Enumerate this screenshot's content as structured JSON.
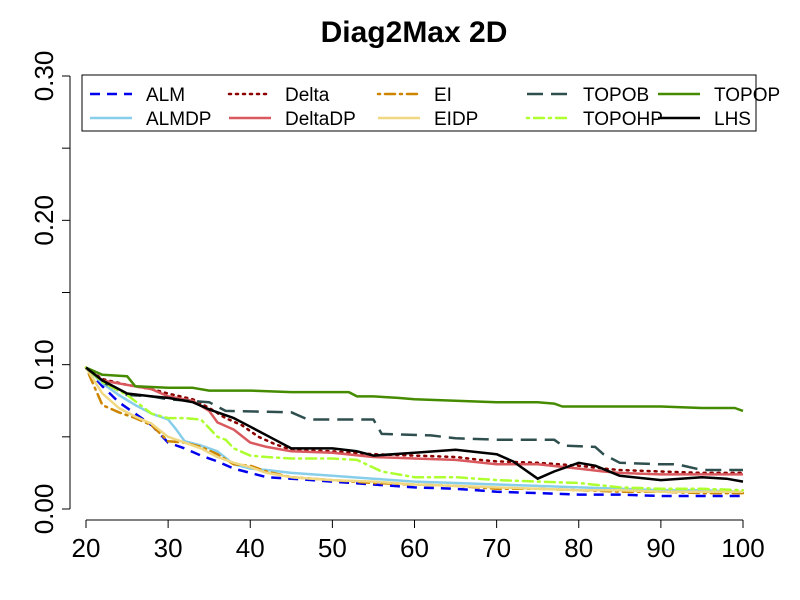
{
  "chart_data": {
    "type": "line",
    "title": "Diag2Max 2D",
    "xlabel": "",
    "ylabel": "",
    "xlim": [
      20,
      100
    ],
    "ylim": [
      0,
      0.3
    ],
    "x_ticks": [
      "20",
      "30",
      "40",
      "50",
      "60",
      "70",
      "80",
      "90",
      "100"
    ],
    "y_ticks": [
      "0.00",
      "0.10",
      "0.20",
      "0.30"
    ],
    "legend_position": "top",
    "grid": false,
    "series": [
      {
        "name": "ALM",
        "color": "#0000ee",
        "dash": "dashed",
        "points": [
          [
            20,
            0.098
          ],
          [
            22,
            0.085
          ],
          [
            24,
            0.074
          ],
          [
            26,
            0.066
          ],
          [
            28,
            0.058
          ],
          [
            30,
            0.046
          ],
          [
            32,
            0.042
          ],
          [
            34,
            0.037
          ],
          [
            36,
            0.033
          ],
          [
            38,
            0.028
          ],
          [
            40,
            0.025
          ],
          [
            42,
            0.022
          ],
          [
            45,
            0.021
          ],
          [
            50,
            0.019
          ],
          [
            55,
            0.017
          ],
          [
            60,
            0.015
          ],
          [
            65,
            0.014
          ],
          [
            70,
            0.012
          ],
          [
            75,
            0.011
          ],
          [
            80,
            0.01
          ],
          [
            85,
            0.01
          ],
          [
            90,
            0.009
          ],
          [
            95,
            0.009
          ],
          [
            100,
            0.009
          ]
        ]
      },
      {
        "name": "ALMDP",
        "color": "#87ceeb",
        "dash": "solid",
        "points": [
          [
            20,
            0.098
          ],
          [
            22,
            0.087
          ],
          [
            24,
            0.079
          ],
          [
            26,
            0.072
          ],
          [
            28,
            0.066
          ],
          [
            30,
            0.062
          ],
          [
            31,
            0.055
          ],
          [
            32,
            0.047
          ],
          [
            34,
            0.044
          ],
          [
            36,
            0.04
          ],
          [
            38,
            0.031
          ],
          [
            40,
            0.028
          ],
          [
            42,
            0.027
          ],
          [
            45,
            0.025
          ],
          [
            50,
            0.023
          ],
          [
            55,
            0.021
          ],
          [
            60,
            0.019
          ],
          [
            65,
            0.018
          ],
          [
            70,
            0.017
          ],
          [
            75,
            0.016
          ],
          [
            80,
            0.015
          ],
          [
            85,
            0.014
          ],
          [
            90,
            0.013
          ],
          [
            95,
            0.013
          ],
          [
            100,
            0.012
          ]
        ]
      },
      {
        "name": "Delta",
        "color": "#8b0000",
        "dash": "dotted",
        "points": [
          [
            20,
            0.098
          ],
          [
            22,
            0.09
          ],
          [
            25,
            0.086
          ],
          [
            28,
            0.083
          ],
          [
            30,
            0.08
          ],
          [
            33,
            0.076
          ],
          [
            35,
            0.07
          ],
          [
            37,
            0.063
          ],
          [
            39,
            0.058
          ],
          [
            41,
            0.05
          ],
          [
            43,
            0.045
          ],
          [
            45,
            0.041
          ],
          [
            50,
            0.04
          ],
          [
            55,
            0.038
          ],
          [
            60,
            0.037
          ],
          [
            65,
            0.036
          ],
          [
            68,
            0.034
          ],
          [
            70,
            0.033
          ],
          [
            75,
            0.032
          ],
          [
            80,
            0.03
          ],
          [
            83,
            0.028
          ],
          [
            85,
            0.027
          ],
          [
            90,
            0.026
          ],
          [
            95,
            0.025
          ],
          [
            100,
            0.025
          ]
        ]
      },
      {
        "name": "DeltaDP",
        "color": "#d9595e",
        "dash": "solid",
        "points": [
          [
            20,
            0.098
          ],
          [
            22,
            0.089
          ],
          [
            25,
            0.086
          ],
          [
            28,
            0.083
          ],
          [
            30,
            0.078
          ],
          [
            33,
            0.075
          ],
          [
            35,
            0.068
          ],
          [
            36,
            0.06
          ],
          [
            38,
            0.055
          ],
          [
            40,
            0.046
          ],
          [
            42,
            0.043
          ],
          [
            45,
            0.04
          ],
          [
            50,
            0.039
          ],
          [
            55,
            0.036
          ],
          [
            60,
            0.035
          ],
          [
            65,
            0.034
          ],
          [
            70,
            0.031
          ],
          [
            75,
            0.031
          ],
          [
            80,
            0.028
          ],
          [
            83,
            0.026
          ],
          [
            85,
            0.025
          ],
          [
            90,
            0.024
          ],
          [
            95,
            0.024
          ],
          [
            100,
            0.024
          ]
        ]
      },
      {
        "name": "EI",
        "color": "#cd8500",
        "dash": "dotdash",
        "points": [
          [
            20,
            0.098
          ],
          [
            22,
            0.072
          ],
          [
            24,
            0.067
          ],
          [
            26,
            0.063
          ],
          [
            28,
            0.058
          ],
          [
            30,
            0.047
          ],
          [
            32,
            0.046
          ],
          [
            34,
            0.043
          ],
          [
            36,
            0.038
          ],
          [
            38,
            0.031
          ],
          [
            40,
            0.03
          ],
          [
            42,
            0.026
          ],
          [
            45,
            0.022
          ],
          [
            50,
            0.02
          ],
          [
            55,
            0.018
          ],
          [
            60,
            0.017
          ],
          [
            65,
            0.016
          ],
          [
            70,
            0.014
          ],
          [
            75,
            0.014
          ],
          [
            80,
            0.013
          ],
          [
            85,
            0.012
          ],
          [
            90,
            0.012
          ],
          [
            95,
            0.011
          ],
          [
            100,
            0.011
          ]
        ]
      },
      {
        "name": "EIDP",
        "color": "#f0d882",
        "dash": "solid",
        "points": [
          [
            20,
            0.098
          ],
          [
            22,
            0.08
          ],
          [
            24,
            0.07
          ],
          [
            26,
            0.064
          ],
          [
            28,
            0.059
          ],
          [
            30,
            0.05
          ],
          [
            32,
            0.046
          ],
          [
            34,
            0.042
          ],
          [
            36,
            0.036
          ],
          [
            38,
            0.032
          ],
          [
            40,
            0.029
          ],
          [
            42,
            0.025
          ],
          [
            45,
            0.022
          ],
          [
            50,
            0.02
          ],
          [
            55,
            0.019
          ],
          [
            60,
            0.017
          ],
          [
            65,
            0.016
          ],
          [
            70,
            0.015
          ],
          [
            75,
            0.014
          ],
          [
            80,
            0.013
          ],
          [
            85,
            0.013
          ],
          [
            90,
            0.012
          ],
          [
            95,
            0.012
          ],
          [
            100,
            0.012
          ]
        ]
      },
      {
        "name": "TOPOB",
        "color": "#2f4f4f",
        "dash": "longdash",
        "points": [
          [
            20,
            0.098
          ],
          [
            22,
            0.088
          ],
          [
            25,
            0.079
          ],
          [
            28,
            0.078
          ],
          [
            30,
            0.076
          ],
          [
            35,
            0.074
          ],
          [
            37,
            0.068
          ],
          [
            45,
            0.067
          ],
          [
            47,
            0.062
          ],
          [
            55,
            0.062
          ],
          [
            56,
            0.052
          ],
          [
            62,
            0.051
          ],
          [
            65,
            0.049
          ],
          [
            70,
            0.048
          ],
          [
            77,
            0.048
          ],
          [
            78,
            0.044
          ],
          [
            82,
            0.043
          ],
          [
            83,
            0.038
          ],
          [
            85,
            0.032
          ],
          [
            90,
            0.031
          ],
          [
            92,
            0.031
          ],
          [
            95,
            0.027
          ],
          [
            100,
            0.027
          ]
        ]
      },
      {
        "name": "TOPOHP",
        "color": "#adff2f",
        "dash": "dotdash",
        "points": [
          [
            20,
            0.098
          ],
          [
            22,
            0.088
          ],
          [
            25,
            0.079
          ],
          [
            28,
            0.066
          ],
          [
            30,
            0.063
          ],
          [
            32,
            0.063
          ],
          [
            34,
            0.062
          ],
          [
            36,
            0.05
          ],
          [
            37,
            0.048
          ],
          [
            38,
            0.042
          ],
          [
            40,
            0.037
          ],
          [
            42,
            0.036
          ],
          [
            45,
            0.035
          ],
          [
            50,
            0.035
          ],
          [
            53,
            0.034
          ],
          [
            56,
            0.026
          ],
          [
            60,
            0.022
          ],
          [
            65,
            0.022
          ],
          [
            70,
            0.02
          ],
          [
            75,
            0.019
          ],
          [
            80,
            0.018
          ],
          [
            85,
            0.015
          ],
          [
            90,
            0.014
          ],
          [
            95,
            0.014
          ],
          [
            100,
            0.013
          ]
        ]
      },
      {
        "name": "TOPOP",
        "color": "#458b00",
        "dash": "solid",
        "points": [
          [
            20,
            0.098
          ],
          [
            22,
            0.093
          ],
          [
            25,
            0.092
          ],
          [
            26,
            0.085
          ],
          [
            30,
            0.084
          ],
          [
            33,
            0.084
          ],
          [
            35,
            0.082
          ],
          [
            40,
            0.082
          ],
          [
            45,
            0.081
          ],
          [
            50,
            0.081
          ],
          [
            52,
            0.081
          ],
          [
            53,
            0.078
          ],
          [
            55,
            0.078
          ],
          [
            58,
            0.077
          ],
          [
            60,
            0.076
          ],
          [
            65,
            0.075
          ],
          [
            70,
            0.074
          ],
          [
            75,
            0.074
          ],
          [
            77,
            0.073
          ],
          [
            78,
            0.071
          ],
          [
            85,
            0.071
          ],
          [
            90,
            0.071
          ],
          [
            95,
            0.07
          ],
          [
            99,
            0.07
          ],
          [
            100,
            0.068
          ]
        ]
      },
      {
        "name": "LHS",
        "color": "#000000",
        "dash": "solid",
        "points": [
          [
            20,
            0.098
          ],
          [
            22,
            0.089
          ],
          [
            25,
            0.08
          ],
          [
            28,
            0.078
          ],
          [
            30,
            0.077
          ],
          [
            33,
            0.074
          ],
          [
            35,
            0.069
          ],
          [
            38,
            0.063
          ],
          [
            40,
            0.057
          ],
          [
            43,
            0.048
          ],
          [
            45,
            0.042
          ],
          [
            50,
            0.042
          ],
          [
            53,
            0.04
          ],
          [
            55,
            0.037
          ],
          [
            60,
            0.039
          ],
          [
            65,
            0.041
          ],
          [
            70,
            0.038
          ],
          [
            72,
            0.033
          ],
          [
            75,
            0.021
          ],
          [
            77,
            0.026
          ],
          [
            80,
            0.032
          ],
          [
            82,
            0.03
          ],
          [
            85,
            0.023
          ],
          [
            90,
            0.02
          ],
          [
            95,
            0.022
          ],
          [
            98,
            0.021
          ],
          [
            100,
            0.019
          ]
        ]
      }
    ]
  }
}
